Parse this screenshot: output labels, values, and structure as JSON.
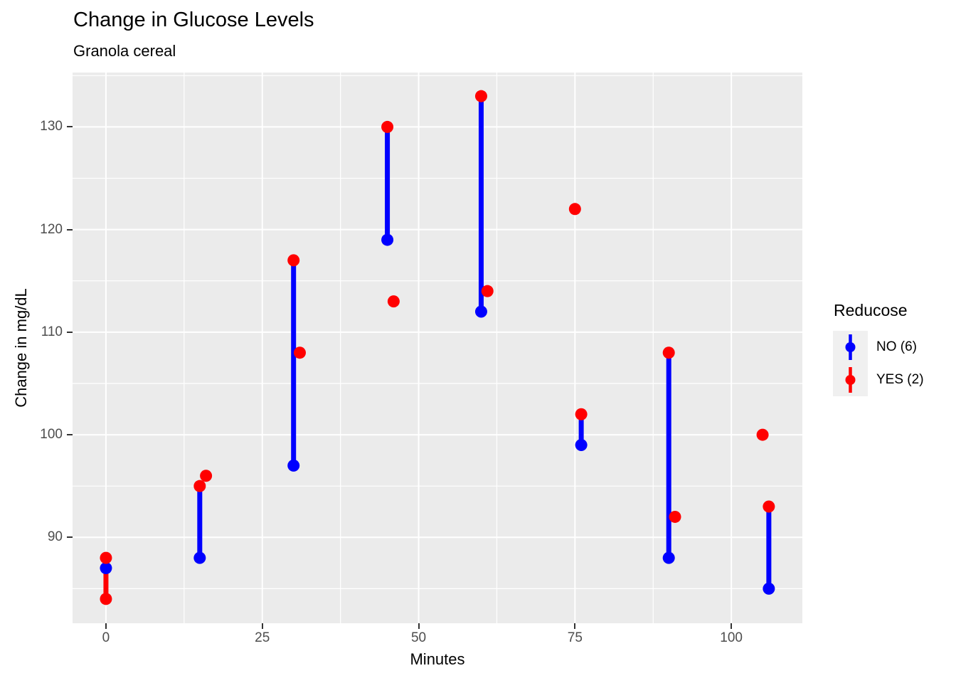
{
  "title": "Change in Glucose Levels",
  "subtitle": "Granola cereal",
  "axes": {
    "x": {
      "label": "Minutes",
      "ticks": [
        0,
        25,
        50,
        75,
        100
      ],
      "minor_ticks": [
        12.5,
        37.5,
        62.5,
        87.5
      ],
      "range": [
        -5.34,
        111.36
      ]
    },
    "y": {
      "label": "Change in mg/dL",
      "ticks": [
        90,
        100,
        110,
        120,
        130
      ],
      "minor_ticks": [
        85,
        95,
        105,
        115,
        125,
        135
      ],
      "range": [
        81.63,
        135.3
      ]
    }
  },
  "legend": {
    "title": "Reducose",
    "items": [
      {
        "label": "NO (6)",
        "color": "#0000FF"
      },
      {
        "label": "YES (2)",
        "color": "#FF0000"
      }
    ]
  },
  "chart_data": {
    "type": "pointrange",
    "title": "Change in Glucose Levels",
    "subtitle": "Granola cereal",
    "xlabel": "Minutes",
    "ylabel": "Change in mg/dL",
    "xlim": [
      -5.34,
      111.36
    ],
    "ylim": [
      81.63,
      135.3
    ],
    "grid": "on",
    "legend_position": "right",
    "series": [
      {
        "name": "NO (6)",
        "color": "#0000FF",
        "draw_order": 2,
        "ranges": [
          {
            "x": 15,
            "ymin": 88,
            "ymax": 95
          },
          {
            "x": 30,
            "ymin": 97,
            "ymax": 117
          },
          {
            "x": 45,
            "ymin": 119,
            "ymax": 130
          },
          {
            "x": 60,
            "ymin": 112,
            "ymax": 133
          },
          {
            "x": 76,
            "ymin": 99,
            "ymax": 102
          },
          {
            "x": 90,
            "ymin": 88,
            "ymax": 108
          },
          {
            "x": 106,
            "ymin": 85,
            "ymax": 93
          }
        ],
        "points": [
          {
            "x": 0,
            "y": 87
          },
          {
            "x": 15,
            "y": 88
          },
          {
            "x": 30,
            "y": 97
          },
          {
            "x": 45,
            "y": 119
          },
          {
            "x": 60,
            "y": 112
          },
          {
            "x": 76,
            "y": 99
          },
          {
            "x": 90,
            "y": 88
          },
          {
            "x": 106,
            "y": 85
          }
        ]
      },
      {
        "name": "YES (2)",
        "color": "#FF0000",
        "draw_order": 1,
        "ranges": [
          {
            "x": 0,
            "ymin": 84,
            "ymax": 88
          }
        ],
        "points": [
          {
            "x": 0,
            "y": 88
          },
          {
            "x": 0,
            "y": 84
          },
          {
            "x": 15,
            "y": 95
          },
          {
            "x": 16,
            "y": 96
          },
          {
            "x": 30,
            "y": 117
          },
          {
            "x": 31,
            "y": 108
          },
          {
            "x": 45,
            "y": 130
          },
          {
            "x": 46,
            "y": 113
          },
          {
            "x": 60,
            "y": 133
          },
          {
            "x": 61,
            "y": 114
          },
          {
            "x": 75,
            "y": 122
          },
          {
            "x": 76,
            "y": 102
          },
          {
            "x": 90,
            "y": 108
          },
          {
            "x": 91,
            "y": 92
          },
          {
            "x": 105,
            "y": 100
          },
          {
            "x": 106,
            "y": 93
          }
        ]
      }
    ]
  },
  "style": {
    "panel_bg": "#EBEBEB",
    "grid_color": "#FFFFFF",
    "tick_label_color": "#4D4D4D",
    "tick_mark_color": "#333333",
    "text_color": "#000000",
    "legend_key_bg": "#F0F0F0",
    "point_radius": 8.5,
    "range_stroke_width": 7,
    "major_grid_width": 2,
    "minor_grid_width": 1.2
  }
}
